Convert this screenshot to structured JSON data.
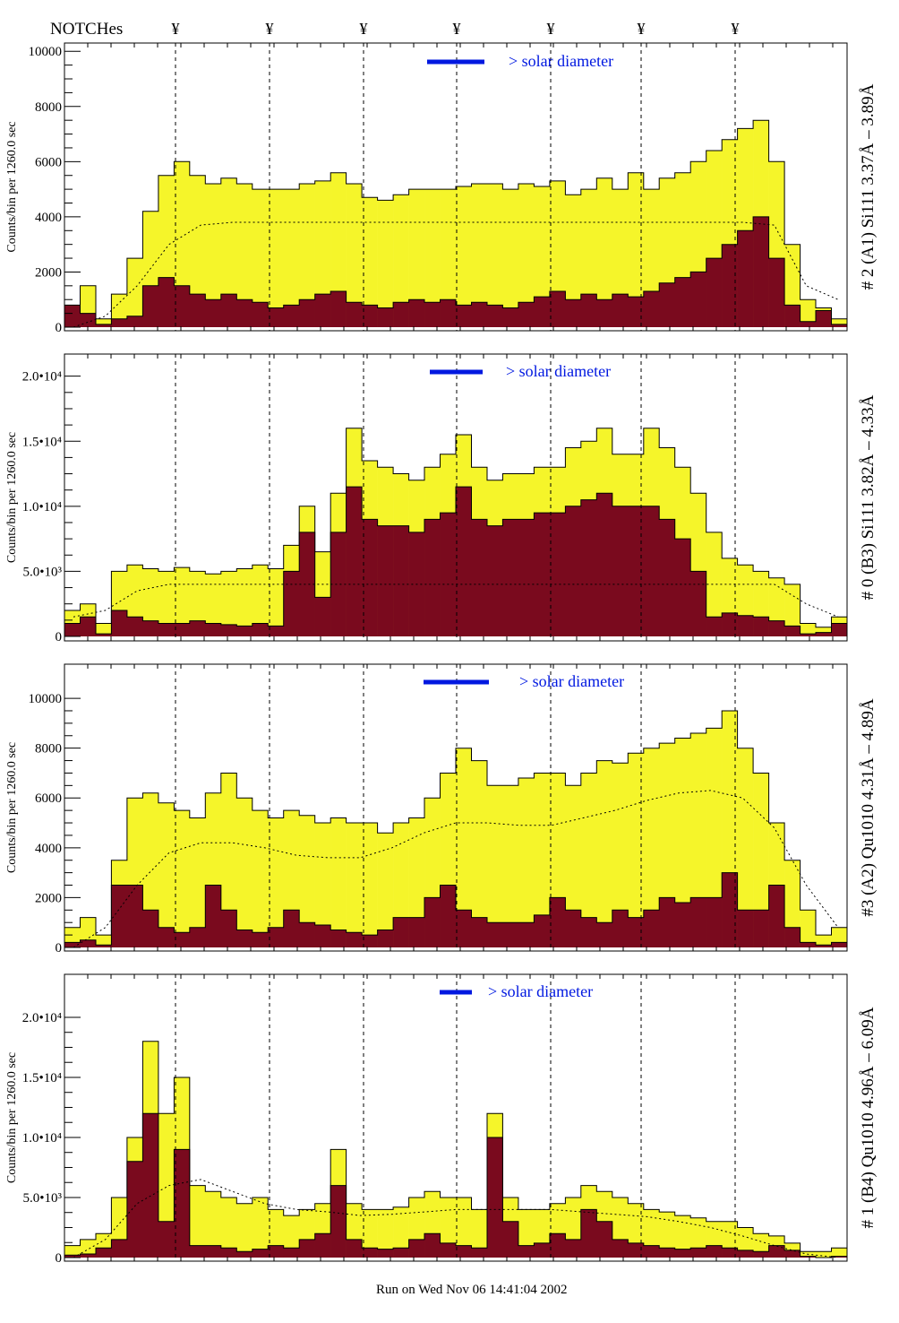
{
  "header": {
    "notches_label": "NOTCHes",
    "notch_symbol": "¥"
  },
  "footer": {
    "run_text": "Run on Wed Nov 06 14:41:04 2002"
  },
  "colors": {
    "total": "#f5f52a",
    "residual": "#7a0a1e",
    "legend": "#0018e0",
    "frame": "#000000"
  },
  "chart_data": [
    {
      "type": "bar",
      "title": "# 2 (A1) Si111  3.37Å – 3.89Å",
      "ylabel": "Counts/bin per   1260.0 sec",
      "legend": "> solar diameter",
      "ylim": [
        -130,
        10300
      ],
      "yticks": [
        {
          "v": 0,
          "label": "0"
        },
        {
          "v": 2000,
          "label": "2000"
        },
        {
          "v": 4000,
          "label": "4000"
        },
        {
          "v": 6000,
          "label": "6000"
        },
        {
          "v": 8000,
          "label": "8000"
        },
        {
          "v": 10000,
          "label": "10000"
        }
      ],
      "series": [
        {
          "name": "total",
          "values": [
            500,
            1500,
            300,
            1200,
            2500,
            4200,
            5500,
            6000,
            5500,
            5200,
            5400,
            5200,
            5000,
            5000,
            5000,
            5200,
            5300,
            5600,
            5200,
            4700,
            4600,
            4800,
            5000,
            5000,
            5000,
            5100,
            5200,
            5200,
            5000,
            5200,
            5100,
            5300,
            4800,
            5000,
            5400,
            5000,
            5600,
            5000,
            5400,
            5600,
            6000,
            6400,
            6800,
            7200,
            7500,
            6000,
            3000,
            1000,
            700,
            300
          ]
        },
        {
          "name": "residual",
          "values": [
            800,
            500,
            100,
            300,
            400,
            1500,
            1800,
            1500,
            1200,
            1000,
            1200,
            1000,
            900,
            700,
            800,
            1000,
            1200,
            1300,
            900,
            800,
            700,
            900,
            1000,
            900,
            1000,
            800,
            900,
            800,
            700,
            900,
            1100,
            1300,
            1000,
            1200,
            1000,
            1200,
            1100,
            1300,
            1600,
            1800,
            2000,
            2500,
            3000,
            3500,
            4000,
            2500,
            800,
            200,
            600,
            100
          ]
        },
        {
          "name": "model",
          "values": [
            0,
            400,
            1500,
            3000,
            3700,
            3800,
            3800,
            3800,
            3800,
            3800,
            3800,
            3800,
            3800,
            3800,
            3800,
            3800,
            3800,
            3800,
            3800,
            3800,
            3800,
            3800,
            3700,
            1500,
            1000
          ]
        }
      ]
    },
    {
      "type": "bar",
      "title": "# 0 (B3) Si111  3.82Å – 4.33Å",
      "ylabel": "Counts/bin per   1260.0 sec",
      "legend": "> solar diameter",
      "ylim": [
        -345,
        21700
      ],
      "yticks": [
        {
          "v": 0,
          "label": "0"
        },
        {
          "v": 5000,
          "label": "5.0•10³"
        },
        {
          "v": 10000,
          "label": "1.0•10⁴"
        },
        {
          "v": 15000,
          "label": "1.5•10⁴"
        },
        {
          "v": 20000,
          "label": "2.0•10⁴"
        }
      ],
      "series": [
        {
          "name": "total",
          "values": [
            2000,
            2500,
            1000,
            5000,
            5500,
            5200,
            5000,
            5300,
            5000,
            4800,
            5000,
            5200,
            5500,
            5200,
            7000,
            10000,
            6500,
            11000,
            16000,
            13500,
            13000,
            12500,
            12000,
            13000,
            14000,
            15500,
            13000,
            12000,
            12500,
            12500,
            13000,
            13000,
            14500,
            15000,
            16000,
            14000,
            14000,
            16000,
            14500,
            13000,
            11000,
            8000,
            6000,
            5500,
            5000,
            4500,
            4000,
            1000,
            700,
            1500
          ]
        },
        {
          "name": "residual",
          "values": [
            1000,
            1500,
            200,
            2000,
            1500,
            1200,
            1000,
            1000,
            1200,
            1000,
            900,
            800,
            1000,
            800,
            5000,
            8000,
            3000,
            8000,
            11500,
            9000,
            8500,
            8500,
            8000,
            9000,
            9500,
            11500,
            9000,
            8500,
            9000,
            9000,
            9500,
            9500,
            10000,
            10500,
            11000,
            10000,
            10000,
            10000,
            9000,
            7500,
            5000,
            1500,
            1800,
            1600,
            1500,
            1200,
            800,
            200,
            300,
            1000
          ]
        },
        {
          "name": "model",
          "values": [
            1500,
            2000,
            3500,
            4000,
            4000,
            4000,
            4000,
            4000,
            4000,
            4000,
            4000,
            4000,
            4000,
            4000,
            4000,
            4000,
            4000,
            4000,
            4000,
            4000,
            4000,
            4000,
            4000,
            2500,
            1500
          ]
        }
      ]
    },
    {
      "type": "bar",
      "title": "#3 (A2) Qu1010  4.31Å – 4.89Å",
      "ylabel": "Counts/bin per   1260.0 sec",
      "legend": "> solar diameter",
      "ylim": [
        -144,
        11370
      ],
      "yticks": [
        {
          "v": 0,
          "label": "0"
        },
        {
          "v": 2000,
          "label": "2000"
        },
        {
          "v": 4000,
          "label": "4000"
        },
        {
          "v": 6000,
          "label": "6000"
        },
        {
          "v": 8000,
          "label": "8000"
        },
        {
          "v": 10000,
          "label": "10000"
        }
      ],
      "series": [
        {
          "name": "total",
          "values": [
            800,
            1200,
            500,
            3500,
            6000,
            6200,
            5800,
            5500,
            5200,
            6200,
            7000,
            6000,
            5500,
            5200,
            5500,
            5300,
            5000,
            5200,
            5000,
            5000,
            4600,
            5000,
            5200,
            6000,
            7000,
            8000,
            7500,
            6500,
            6500,
            6800,
            7000,
            7000,
            6500,
            7000,
            7500,
            7400,
            7800,
            8000,
            8200,
            8400,
            8600,
            8800,
            9500,
            8000,
            7000,
            5000,
            3500,
            1500,
            500,
            800
          ]
        },
        {
          "name": "residual",
          "values": [
            200,
            300,
            100,
            2500,
            2500,
            1500,
            800,
            600,
            800,
            2500,
            1500,
            700,
            600,
            800,
            1500,
            1000,
            900,
            700,
            600,
            500,
            700,
            1200,
            1200,
            2000,
            2500,
            1500,
            1200,
            1000,
            1000,
            1000,
            1300,
            2000,
            1500,
            1200,
            1000,
            1500,
            1200,
            1500,
            2000,
            1800,
            2000,
            2000,
            3000,
            1500,
            1500,
            2500,
            800,
            200,
            100,
            200
          ]
        },
        {
          "name": "model",
          "values": [
            0,
            800,
            2500,
            3800,
            4200,
            4200,
            4000,
            3700,
            3600,
            3600,
            4000,
            4600,
            5000,
            5000,
            4900,
            4900,
            5200,
            5500,
            5900,
            6200,
            6300,
            6000,
            4800,
            2500,
            800
          ]
        }
      ]
    },
    {
      "type": "bar",
      "title": "# 1 (B4) Qu1010 4.96Å – 6.09Å",
      "ylabel": "Counts/bin per   1260.0 sec",
      "legend": "> solar diameter",
      "ylim": [
        -300,
        23580
      ],
      "yticks": [
        {
          "v": 0,
          "label": "0"
        },
        {
          "v": 5000,
          "label": "5.0•10³"
        },
        {
          "v": 10000,
          "label": "1.0•10⁴"
        },
        {
          "v": 15000,
          "label": "1.5•10⁴"
        },
        {
          "v": 20000,
          "label": "2.0•10⁴"
        }
      ],
      "series": [
        {
          "name": "total",
          "values": [
            1000,
            1500,
            2000,
            5000,
            10000,
            18000,
            12000,
            15000,
            6000,
            5500,
            5000,
            4500,
            5000,
            4000,
            3500,
            4000,
            4500,
            9000,
            4500,
            4000,
            4000,
            4200,
            5000,
            5500,
            5000,
            5000,
            4000,
            12000,
            5000,
            4000,
            4000,
            4500,
            5000,
            6000,
            5500,
            5000,
            4500,
            4000,
            3800,
            3500,
            3300,
            3000,
            3000,
            2500,
            2000,
            1800,
            1200,
            500,
            500,
            800
          ]
        },
        {
          "name": "residual",
          "values": [
            200,
            300,
            800,
            1500,
            8000,
            12000,
            3000,
            9000,
            1000,
            1000,
            800,
            500,
            700,
            1000,
            800,
            1500,
            2000,
            6000,
            1500,
            800,
            700,
            800,
            1500,
            2000,
            1200,
            1000,
            800,
            10000,
            3000,
            1000,
            1200,
            2000,
            1500,
            4000,
            3000,
            1500,
            1200,
            1000,
            800,
            700,
            800,
            1000,
            800,
            600,
            500,
            1000,
            600,
            100,
            0,
            100
          ]
        },
        {
          "name": "model",
          "values": [
            0,
            1500,
            4500,
            6000,
            6500,
            5500,
            4500,
            4000,
            3800,
            3500,
            3600,
            3800,
            4000,
            4000,
            4000,
            4000,
            3800,
            3600,
            3400,
            3000,
            2500,
            1800,
            1000,
            300,
            0
          ]
        }
      ]
    }
  ]
}
